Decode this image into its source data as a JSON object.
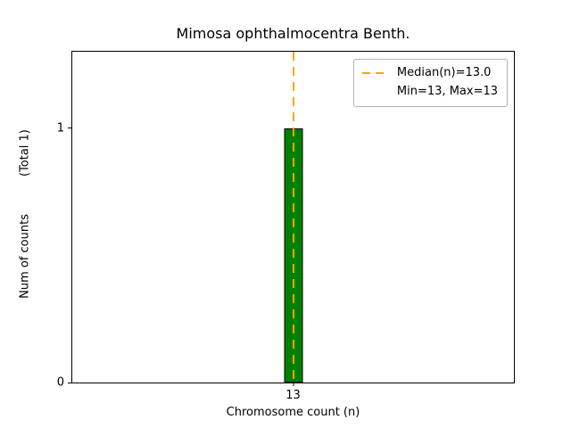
{
  "chart_data": {
    "type": "bar",
    "title": "Mimosa ophthalmocentra Benth.",
    "xlabel": "Chromosome count (n)",
    "ylabel": "Num of counts",
    "ylabel_total": "(Total 1)",
    "categories": [
      "13"
    ],
    "values": [
      1
    ],
    "ylim": [
      0,
      1.3
    ],
    "yticks": [
      0,
      1
    ],
    "grid": false,
    "legend_position": "upper right",
    "bar_color": "#008000",
    "bar_edge_color": "#000000",
    "median_line": {
      "x": "13",
      "value_label": "13.0",
      "color": "#ffa500",
      "style": "dashed"
    },
    "legend": {
      "entries": [
        {
          "label": "Median(n)=13.0",
          "sample": "dashed-orange-line",
          "color": "#ffa500"
        },
        {
          "label": "Min=13, Max=13",
          "sample": "none"
        }
      ]
    }
  }
}
